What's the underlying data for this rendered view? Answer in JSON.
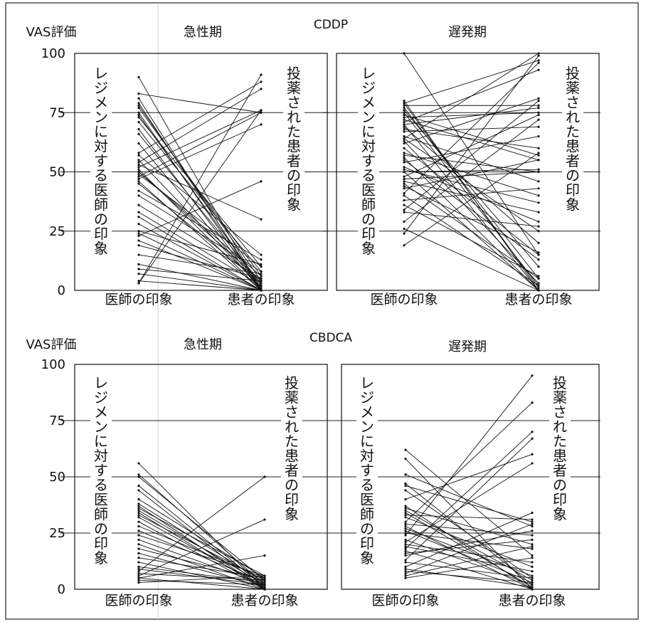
{
  "chart_data": [
    {
      "type": "line",
      "title": "CDDP",
      "subtitle": "急性期",
      "ylabel": "VAS評価",
      "categories": [
        "医師の印象",
        "患者の印象"
      ],
      "ylim": [
        0,
        100
      ],
      "yticks": [
        0,
        25,
        50,
        75,
        100
      ],
      "left_label": "レジメンに対する医師の印象",
      "right_label": "投薬された患者の印象",
      "pairs": [
        [
          90,
          0
        ],
        [
          83,
          75
        ],
        [
          81,
          0
        ],
        [
          79,
          1
        ],
        [
          78,
          4
        ],
        [
          77,
          6
        ],
        [
          75,
          0
        ],
        [
          74,
          2
        ],
        [
          73,
          10
        ],
        [
          71,
          8
        ],
        [
          68,
          0
        ],
        [
          66,
          3
        ],
        [
          62,
          0
        ],
        [
          58,
          88
        ],
        [
          57,
          15
        ],
        [
          55,
          1
        ],
        [
          54,
          85
        ],
        [
          53,
          30
        ],
        [
          52,
          76
        ],
        [
          51,
          0
        ],
        [
          50,
          6
        ],
        [
          50,
          4
        ],
        [
          49,
          10
        ],
        [
          48,
          75
        ],
        [
          47,
          70
        ],
        [
          46,
          0
        ],
        [
          45,
          3
        ],
        [
          42,
          13
        ],
        [
          40,
          8
        ],
        [
          36,
          5
        ],
        [
          33,
          2
        ],
        [
          31,
          0
        ],
        [
          28,
          0
        ],
        [
          25,
          11
        ],
        [
          24,
          0
        ],
        [
          23,
          46
        ],
        [
          21,
          0
        ],
        [
          19,
          5
        ],
        [
          15,
          7
        ],
        [
          11,
          0
        ],
        [
          9,
          4
        ],
        [
          7,
          0
        ],
        [
          4,
          0
        ],
        [
          3,
          91
        ],
        [
          3,
          76
        ]
      ]
    },
    {
      "type": "line",
      "title": "",
      "subtitle": "遅発期",
      "ylabel": "",
      "categories": [
        "医師の印象",
        "患者の印象"
      ],
      "ylim": [
        0,
        100
      ],
      "yticks": [
        0,
        25,
        50,
        75,
        100
      ],
      "left_label": "レジメンに対する医師の印象",
      "right_label": "投薬された患者の印象",
      "pairs": [
        [
          100,
          15
        ],
        [
          80,
          0
        ],
        [
          79,
          1
        ],
        [
          79,
          97
        ],
        [
          78,
          78
        ],
        [
          77,
          5
        ],
        [
          76,
          10
        ],
        [
          75,
          2
        ],
        [
          74,
          57
        ],
        [
          73,
          75
        ],
        [
          72,
          55
        ],
        [
          71,
          93
        ],
        [
          70,
          0
        ],
        [
          70,
          77
        ],
        [
          69,
          20
        ],
        [
          68,
          60
        ],
        [
          67,
          69
        ],
        [
          65,
          46
        ],
        [
          64,
          100
        ],
        [
          64,
          25
        ],
        [
          63,
          3
        ],
        [
          62,
          81
        ],
        [
          60,
          15
        ],
        [
          58,
          40
        ],
        [
          57,
          50
        ],
        [
          56,
          0
        ],
        [
          55,
          13
        ],
        [
          54,
          65
        ],
        [
          52,
          29
        ],
        [
          51,
          37
        ],
        [
          50,
          0
        ],
        [
          50,
          51
        ],
        [
          48,
          74
        ],
        [
          47,
          50
        ],
        [
          46,
          33
        ],
        [
          45,
          5
        ],
        [
          44,
          16
        ],
        [
          43,
          55
        ],
        [
          41,
          96
        ],
        [
          40,
          2
        ],
        [
          38,
          43
        ],
        [
          36,
          6
        ],
        [
          34,
          80
        ],
        [
          33,
          27
        ],
        [
          29,
          72
        ],
        [
          26,
          0
        ],
        [
          24,
          99
        ],
        [
          19,
          58
        ]
      ]
    },
    {
      "type": "line",
      "title": "CBDCA",
      "subtitle": "急性期",
      "ylabel": "VAS評価",
      "categories": [
        "医師の印象",
        "患者の印象"
      ],
      "ylim": [
        0,
        100
      ],
      "yticks": [
        0,
        25,
        50,
        75,
        100
      ],
      "left_label": "レジメンに対する医師の印象",
      "right_label": "投薬された患者の印象",
      "pairs": [
        [
          56,
          0
        ],
        [
          51,
          2
        ],
        [
          50,
          4
        ],
        [
          46,
          1
        ],
        [
          44,
          0
        ],
        [
          40,
          5
        ],
        [
          38,
          3
        ],
        [
          37,
          0
        ],
        [
          36,
          6
        ],
        [
          35,
          2
        ],
        [
          34,
          0
        ],
        [
          33,
          4
        ],
        [
          32,
          1
        ],
        [
          30,
          0
        ],
        [
          28,
          5
        ],
        [
          26,
          3
        ],
        [
          24,
          6
        ],
        [
          22,
          2
        ],
        [
          20,
          0
        ],
        [
          18,
          4
        ],
        [
          16,
          1
        ],
        [
          14,
          5
        ],
        [
          12,
          0
        ],
        [
          10,
          3
        ],
        [
          9,
          2
        ],
        [
          8,
          50
        ],
        [
          7,
          4
        ],
        [
          6,
          31
        ],
        [
          5,
          15
        ],
        [
          5,
          0
        ],
        [
          4,
          2
        ],
        [
          3,
          6
        ]
      ]
    },
    {
      "type": "line",
      "title": "",
      "subtitle": "遅発期",
      "ylabel": "",
      "categories": [
        "医師の印象",
        "患者の印象"
      ],
      "ylim": [
        0,
        100
      ],
      "yticks": [
        0,
        25,
        50,
        75,
        100
      ],
      "left_label": "レジメンに対する医師の印象",
      "right_label": "投薬された患者の印象",
      "pairs": [
        [
          62,
          15
        ],
        [
          58,
          0
        ],
        [
          51,
          28
        ],
        [
          47,
          2
        ],
        [
          46,
          30
        ],
        [
          44,
          5
        ],
        [
          40,
          60
        ],
        [
          37,
          0
        ],
        [
          36,
          20
        ],
        [
          35,
          4
        ],
        [
          34,
          1
        ],
        [
          33,
          31
        ],
        [
          32,
          10
        ],
        [
          30,
          83
        ],
        [
          29,
          24
        ],
        [
          28,
          0
        ],
        [
          27,
          6
        ],
        [
          26,
          3
        ],
        [
          25,
          18
        ],
        [
          24,
          95
        ],
        [
          22,
          2
        ],
        [
          21,
          56
        ],
        [
          20,
          12
        ],
        [
          19,
          8
        ],
        [
          18,
          70
        ],
        [
          17,
          0
        ],
        [
          16,
          22
        ],
        [
          15,
          26
        ],
        [
          13,
          67
        ],
        [
          12,
          5
        ],
        [
          10,
          34
        ],
        [
          9,
          1
        ],
        [
          8,
          3
        ],
        [
          7,
          29
        ],
        [
          6,
          19
        ],
        [
          5,
          14
        ]
      ]
    }
  ]
}
